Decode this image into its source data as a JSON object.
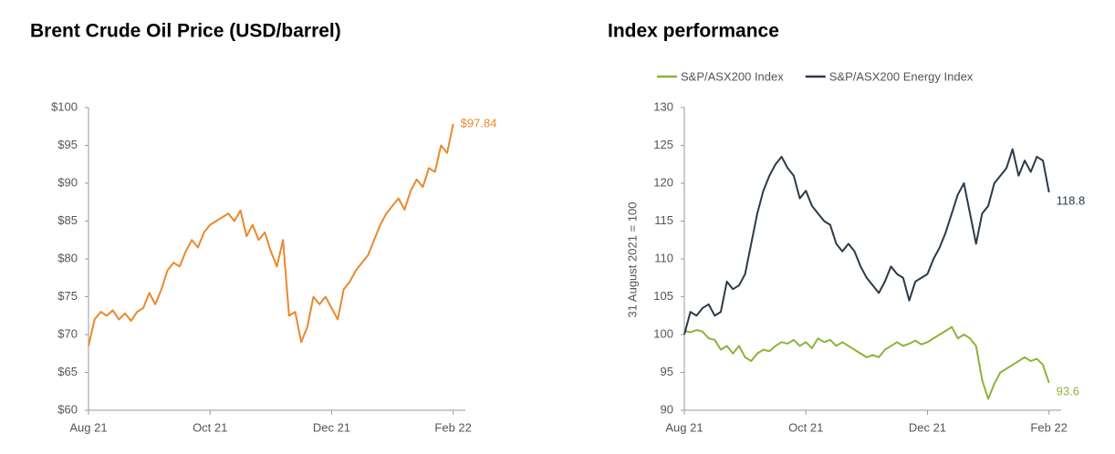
{
  "chart_data": [
    {
      "type": "line",
      "title": "Brent Crude Oil Price (USD/barrel)",
      "x": [
        0,
        0.1,
        0.2,
        0.3,
        0.4,
        0.5,
        0.6,
        0.7,
        0.8,
        0.9,
        1,
        1.1,
        1.2,
        1.3,
        1.4,
        1.5,
        1.6,
        1.7,
        1.8,
        1.9,
        2,
        2.1,
        2.2,
        2.3,
        2.4,
        2.5,
        2.6,
        2.7,
        2.8,
        2.9,
        3,
        3.1,
        3.2,
        3.3,
        3.4,
        3.5,
        3.6,
        3.7,
        3.8,
        3.9,
        4,
        4.1,
        4.2,
        4.3,
        4.4,
        4.5,
        4.6,
        4.7,
        4.8,
        4.9,
        5,
        5.1,
        5.2,
        5.3,
        5.4,
        5.5,
        5.6,
        5.7,
        5.8,
        5.9,
        6
      ],
      "series": [
        {
          "color": "#e8892e",
          "values": [
            68.5,
            72,
            73,
            72.5,
            73.2,
            72,
            72.8,
            71.8,
            73,
            73.5,
            75.5,
            74,
            76,
            78.5,
            79.5,
            79,
            81,
            82.5,
            81.5,
            83.5,
            84.5,
            85,
            85.5,
            86,
            85,
            86.4,
            83,
            84.5,
            82.5,
            83.5,
            81,
            79,
            82.5,
            72.5,
            73,
            69,
            71,
            75,
            74,
            75,
            73.5,
            72,
            76,
            77,
            78.5,
            79.5,
            80.5,
            82.5,
            84.5,
            86,
            87,
            88,
            86.5,
            89,
            90.5,
            89.5,
            92,
            91.5,
            95,
            94,
            97.84
          ],
          "value_labels": [
            null,
            null,
            null,
            null,
            null,
            null,
            null,
            null,
            null,
            null,
            null,
            null,
            null,
            null,
            null,
            null,
            null,
            null,
            null,
            null,
            null,
            null,
            null,
            null,
            null,
            null,
            null,
            null,
            null,
            null,
            null,
            null,
            null,
            null,
            null,
            null,
            null,
            null,
            null,
            null,
            null,
            null,
            null,
            null,
            null,
            null,
            null,
            null,
            null,
            null,
            null,
            null,
            null,
            null,
            null,
            null,
            null,
            null,
            null,
            null,
            "$97.84"
          ]
        }
      ],
      "xlim": [
        0,
        6.2
      ],
      "xticks": [
        {
          "value": 0,
          "label": "Aug 21"
        },
        {
          "value": 2,
          "label": "Oct 21"
        },
        {
          "value": 4,
          "label": "Dec 21"
        },
        {
          "value": 6,
          "label": "Feb 22"
        }
      ],
      "ylim": [
        60,
        100
      ],
      "yticks": [
        {
          "value": 60,
          "label": "$60"
        },
        {
          "value": 65,
          "label": "$65"
        },
        {
          "value": 70,
          "label": "$70"
        },
        {
          "value": 75,
          "label": "$75"
        },
        {
          "value": 80,
          "label": "$80"
        },
        {
          "value": 85,
          "label": "$85"
        },
        {
          "value": 90,
          "label": "$90"
        },
        {
          "value": 95,
          "label": "$95"
        },
        {
          "value": 100,
          "label": "$100"
        }
      ],
      "grid": false,
      "legend": false
    },
    {
      "type": "line",
      "title": "Index performance",
      "y_label": "31 August 2021 = 100",
      "x": [
        0,
        0.1,
        0.2,
        0.3,
        0.4,
        0.5,
        0.6,
        0.7,
        0.8,
        0.9,
        1,
        1.1,
        1.2,
        1.3,
        1.4,
        1.5,
        1.6,
        1.7,
        1.8,
        1.9,
        2,
        2.1,
        2.2,
        2.3,
        2.4,
        2.5,
        2.6,
        2.7,
        2.8,
        2.9,
        3,
        3.1,
        3.2,
        3.3,
        3.4,
        3.5,
        3.6,
        3.7,
        3.8,
        3.9,
        4,
        4.1,
        4.2,
        4.3,
        4.4,
        4.5,
        4.6,
        4.7,
        4.8,
        4.9,
        5,
        5.1,
        5.2,
        5.3,
        5.4,
        5.5,
        5.6,
        5.7,
        5.8,
        5.9,
        6
      ],
      "series": [
        {
          "name": "S&P/ASX200 Index",
          "color": "#8db33a",
          "values": [
            100.5,
            100.3,
            100.6,
            100.4,
            99.5,
            99.3,
            98,
            98.5,
            97.5,
            98.5,
            97,
            96.5,
            97.5,
            98,
            97.8,
            98.5,
            99,
            98.8,
            99.3,
            98.5,
            99,
            98.2,
            99.5,
            99,
            99.3,
            98.5,
            99,
            98.5,
            98,
            97.5,
            97,
            97.3,
            97,
            98,
            98.5,
            99,
            98.5,
            98.8,
            99.2,
            98.7,
            99,
            99.5,
            100,
            100.5,
            101,
            99.5,
            100,
            99.5,
            98.5,
            94,
            91.5,
            93.5,
            95,
            95.5,
            96,
            96.5,
            97,
            96.5,
            96.8,
            96,
            93.6
          ]
        },
        {
          "name": "S&P/ASX200 Energy Index",
          "color": "#2b3a4a",
          "values": [
            100,
            103,
            102.5,
            103.5,
            104,
            102.5,
            103,
            107,
            106,
            106.5,
            108,
            112,
            116,
            119,
            121,
            122.5,
            123.5,
            122,
            121,
            118,
            119,
            117,
            116,
            115,
            114.5,
            112,
            111,
            112,
            111,
            109,
            107.5,
            106.5,
            105.5,
            107,
            109,
            108,
            107.5,
            104.5,
            107,
            107.5,
            108,
            110,
            111.5,
            113.5,
            116,
            118.5,
            120,
            116,
            112,
            116,
            117,
            120,
            121,
            122,
            124.5,
            121,
            123,
            121.5,
            123.5,
            123,
            118.8
          ]
        }
      ],
      "xlim": [
        0,
        6.2
      ],
      "xticks": [
        {
          "value": 0,
          "label": "Aug 21"
        },
        {
          "value": 2,
          "label": "Oct 21"
        },
        {
          "value": 4,
          "label": "Dec 21"
        },
        {
          "value": 6,
          "label": "Feb 22"
        }
      ],
      "ylim": [
        90,
        130
      ],
      "yticks": [
        90,
        95,
        100,
        105,
        110,
        115,
        120,
        125,
        130
      ],
      "grid": false,
      "legend": true
    }
  ]
}
